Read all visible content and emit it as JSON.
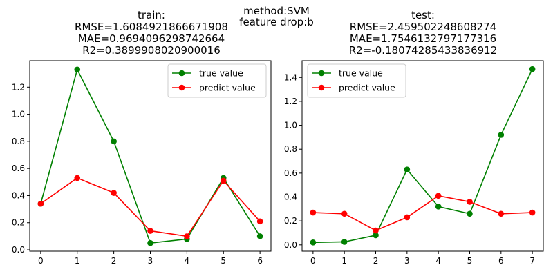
{
  "figure": {
    "suptitle_lines": [
      "method:SVM",
      "feature drop:b"
    ]
  },
  "chart_data": [
    {
      "type": "line",
      "title_lines": [
        "train:",
        "RMSE=1.6084921866671908",
        "MAE=0.9694096298742664",
        "R2=0.3899908020900016"
      ],
      "xlabel": "",
      "ylabel": "",
      "x": [
        0,
        1,
        2,
        3,
        4,
        5,
        6
      ],
      "xticks": [
        "0",
        "1",
        "2",
        "3",
        "4",
        "5",
        "6"
      ],
      "xlim": [
        -0.3,
        6.3
      ],
      "ylim": [
        -0.01,
        1.395
      ],
      "yticks": [
        "0.0",
        "0.2",
        "0.4",
        "0.6",
        "0.8",
        "1.0",
        "1.2"
      ],
      "grid": false,
      "legend_position": "top-right",
      "series": [
        {
          "name": "true value",
          "color": "#008000",
          "marker": "circle",
          "values": [
            0.34,
            1.33,
            0.8,
            0.05,
            0.08,
            0.53,
            0.1
          ]
        },
        {
          "name": "predict value",
          "color": "#ff0000",
          "marker": "circle",
          "values": [
            0.34,
            0.53,
            0.42,
            0.14,
            0.1,
            0.51,
            0.21
          ]
        }
      ]
    },
    {
      "type": "line",
      "title_lines": [
        "test:",
        "RMSE=2.459502248608274",
        "MAE=1.7546132797177316",
        "R2=-0.18074285433836912"
      ],
      "xlabel": "",
      "ylabel": "",
      "x": [
        0,
        1,
        2,
        3,
        4,
        5,
        6,
        7
      ],
      "xticks": [
        "0",
        "1",
        "2",
        "3",
        "4",
        "5",
        "6",
        "7"
      ],
      "xlim": [
        -0.35,
        7.35
      ],
      "ylim": [
        -0.053,
        1.54
      ],
      "yticks": [
        "0.0",
        "0.2",
        "0.4",
        "0.6",
        "0.8",
        "1.0",
        "1.2",
        "1.4"
      ],
      "grid": false,
      "legend_position": "top-left",
      "series": [
        {
          "name": "true value",
          "color": "#008000",
          "marker": "circle",
          "values": [
            0.02,
            0.025,
            0.08,
            0.63,
            0.32,
            0.26,
            0.92,
            1.47
          ]
        },
        {
          "name": "predict value",
          "color": "#ff0000",
          "marker": "circle",
          "values": [
            0.27,
            0.26,
            0.12,
            0.23,
            0.41,
            0.36,
            0.26,
            0.27
          ]
        }
      ]
    }
  ]
}
